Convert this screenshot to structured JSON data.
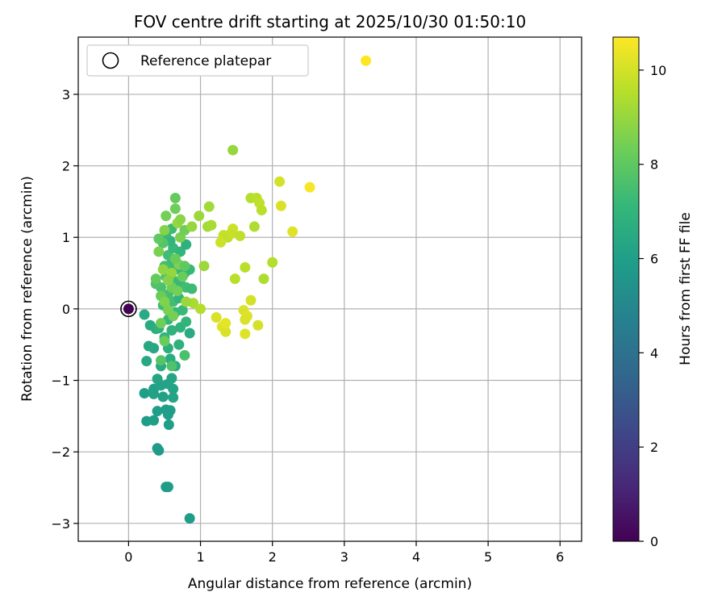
{
  "chart_data": {
    "type": "scatter",
    "title": "FOV centre drift starting at 2025/10/30 01:50:10",
    "xlabel": "Angular distance from reference (arcmin)",
    "ylabel": "Rotation from reference (arcmin)",
    "xlim": [
      -0.7,
      6.3
    ],
    "ylim": [
      -3.25,
      3.8
    ],
    "xticks": [
      0,
      1,
      2,
      3,
      4,
      5,
      6
    ],
    "yticks": [
      -3,
      -2,
      -1,
      0,
      1,
      2,
      3
    ],
    "xtick_labels": [
      "0",
      "1",
      "2",
      "3",
      "4",
      "5",
      "6"
    ],
    "ytick_labels": [
      "−3",
      "−2",
      "−1",
      "0",
      "1",
      "2",
      "3"
    ],
    "grid": true,
    "legend": {
      "position": "top-left",
      "label": "Reference platepar"
    },
    "reference_point": {
      "x": 0,
      "y": 0,
      "hours": 0
    },
    "colorbar": {
      "label": "Hours from first FF file",
      "range": [
        0,
        10.7
      ],
      "ticks": [
        0,
        2,
        4,
        6,
        8,
        10
      ],
      "tick_labels": [
        "0",
        "2",
        "4",
        "6",
        "8",
        "10"
      ],
      "colormap": "viridis",
      "colors": [
        "#440154",
        "#482878",
        "#3e4989",
        "#31688e",
        "#26828e",
        "#1f9e89",
        "#35b779",
        "#6ece58",
        "#b5de2b",
        "#fde725"
      ]
    },
    "points": [
      [
        0.52,
        -2.49,
        5.9
      ],
      [
        0.55,
        -2.49,
        5.9
      ],
      [
        0.85,
        -2.93,
        5.9
      ],
      [
        0.4,
        -1.95,
        5.8
      ],
      [
        0.42,
        -1.98,
        5.8
      ],
      [
        0.25,
        -1.57,
        5.9
      ],
      [
        0.35,
        -1.56,
        6.0
      ],
      [
        0.22,
        -1.18,
        6.0
      ],
      [
        0.35,
        -1.12,
        6.1
      ],
      [
        0.35,
        -1.19,
        6.1
      ],
      [
        0.4,
        -1.43,
        6.0
      ],
      [
        0.52,
        -1.41,
        6.0
      ],
      [
        0.55,
        -1.48,
        6.0
      ],
      [
        0.58,
        -1.42,
        6.0
      ],
      [
        0.56,
        -1.62,
        6.0
      ],
      [
        0.48,
        -1.23,
        6.1
      ],
      [
        0.62,
        -1.24,
        6.2
      ],
      [
        0.62,
        -1.12,
        6.2
      ],
      [
        0.55,
        -1.05,
        6.2
      ],
      [
        0.45,
        -1.07,
        6.2
      ],
      [
        0.4,
        -0.98,
        6.3
      ],
      [
        0.6,
        -0.97,
        6.3
      ],
      [
        0.28,
        -0.52,
        6.4
      ],
      [
        0.35,
        -0.55,
        6.4
      ],
      [
        0.25,
        -0.73,
        6.4
      ],
      [
        0.45,
        -0.8,
        6.5
      ],
      [
        0.58,
        -0.7,
        6.6
      ],
      [
        0.65,
        -0.8,
        6.6
      ],
      [
        0.22,
        -0.08,
        6.5
      ],
      [
        0.3,
        -0.23,
        6.5
      ],
      [
        0.38,
        -0.28,
        6.6
      ],
      [
        0.85,
        -0.34,
        6.5
      ],
      [
        0.55,
        -0.55,
        6.7
      ],
      [
        0.7,
        -0.5,
        6.8
      ],
      [
        0.78,
        -0.65,
        7.6
      ],
      [
        0.6,
        -0.8,
        7.7
      ],
      [
        0.45,
        -0.72,
        7.8
      ],
      [
        0.42,
        -0.27,
        6.8
      ],
      [
        0.5,
        -0.4,
        7.0
      ],
      [
        0.6,
        -0.3,
        6.9
      ],
      [
        0.72,
        -0.26,
        6.9
      ],
      [
        0.8,
        -0.18,
        7.0
      ],
      [
        0.55,
        -0.15,
        7.1
      ],
      [
        0.65,
        -0.05,
        7.2
      ],
      [
        0.75,
        -0.02,
        7.2
      ],
      [
        0.48,
        0.05,
        7.3
      ],
      [
        0.62,
        0.1,
        7.4
      ],
      [
        0.7,
        0.15,
        7.0
      ],
      [
        0.55,
        0.2,
        7.5
      ],
      [
        0.45,
        0.3,
        7.6
      ],
      [
        0.38,
        0.35,
        7.7
      ],
      [
        0.52,
        0.45,
        7.7
      ],
      [
        0.62,
        0.4,
        7.3
      ],
      [
        0.72,
        0.35,
        7.2
      ],
      [
        0.8,
        0.3,
        7.4
      ],
      [
        0.88,
        0.28,
        7.3
      ],
      [
        0.85,
        0.55,
        7.2
      ],
      [
        0.78,
        0.5,
        7.0
      ],
      [
        0.65,
        0.55,
        7.1
      ],
      [
        0.58,
        0.62,
        7.3
      ],
      [
        0.5,
        0.6,
        7.5
      ],
      [
        0.55,
        0.75,
        7.4
      ],
      [
        0.62,
        0.85,
        7.2
      ],
      [
        0.72,
        0.8,
        7.0
      ],
      [
        0.8,
        0.9,
        6.8
      ],
      [
        0.58,
        0.95,
        7.0
      ],
      [
        0.52,
        1.05,
        7.2
      ],
      [
        0.6,
        1.12,
        7.3
      ],
      [
        0.48,
        0.92,
        7.8
      ],
      [
        0.42,
        0.98,
        8.0
      ],
      [
        0.38,
        0.42,
        8.1
      ],
      [
        0.45,
        0.18,
        8.2
      ],
      [
        0.5,
        0.1,
        8.6
      ],
      [
        0.55,
        -0.02,
        8.5
      ],
      [
        0.62,
        -0.1,
        8.4
      ],
      [
        0.45,
        -0.2,
        8.3
      ],
      [
        0.5,
        -0.45,
        8.2
      ],
      [
        0.6,
        0.3,
        8.3
      ],
      [
        0.68,
        0.25,
        8.4
      ],
      [
        0.75,
        0.45,
        8.2
      ],
      [
        0.7,
        0.62,
        8.6
      ],
      [
        0.78,
        0.6,
        8.0
      ],
      [
        0.65,
        0.7,
        8.2
      ],
      [
        0.72,
        1.0,
        8.5
      ],
      [
        0.78,
        1.1,
        8.3
      ],
      [
        0.68,
        1.2,
        9.0
      ],
      [
        0.72,
        1.25,
        8.8
      ],
      [
        0.65,
        1.4,
        8.3
      ],
      [
        0.65,
        1.55,
        8.1
      ],
      [
        0.52,
        1.3,
        8.4
      ],
      [
        0.5,
        1.1,
        8.7
      ],
      [
        0.42,
        0.8,
        8.5
      ],
      [
        0.48,
        0.55,
        8.9
      ],
      [
        0.6,
        0.5,
        9.0
      ],
      [
        0.55,
        0.4,
        8.7
      ],
      [
        0.88,
        1.15,
        9.0
      ],
      [
        0.98,
        1.3,
        9.1
      ],
      [
        1.1,
        1.15,
        9.2
      ],
      [
        1.15,
        1.17,
        9.3
      ],
      [
        1.12,
        1.43,
        9.2
      ],
      [
        1.05,
        0.6,
        9.1
      ],
      [
        0.9,
        0.08,
        9.3
      ],
      [
        1.0,
        0.0,
        9.5
      ],
      [
        0.8,
        0.1,
        9.1
      ],
      [
        1.45,
        2.22,
        9.0
      ],
      [
        1.32,
        1.03,
        9.8
      ],
      [
        1.38,
        1.0,
        9.7
      ],
      [
        1.28,
        0.93,
        9.9
      ],
      [
        1.45,
        1.12,
        9.9
      ],
      [
        1.42,
        1.05,
        9.8
      ],
      [
        1.55,
        1.02,
        9.7
      ],
      [
        1.62,
        0.58,
        9.6
      ],
      [
        1.48,
        0.42,
        9.6
      ],
      [
        1.7,
        1.55,
        9.5
      ],
      [
        1.78,
        1.55,
        9.6
      ],
      [
        1.82,
        1.48,
        9.7
      ],
      [
        1.85,
        1.38,
        9.6
      ],
      [
        1.75,
        1.15,
        9.4
      ],
      [
        2.0,
        0.65,
        9.5
      ],
      [
        1.88,
        0.42,
        9.4
      ],
      [
        1.7,
        0.12,
        10.0
      ],
      [
        1.6,
        -0.02,
        10.1
      ],
      [
        1.65,
        -0.1,
        10.2
      ],
      [
        1.62,
        -0.15,
        10.1
      ],
      [
        1.62,
        -0.35,
        10.2
      ],
      [
        1.8,
        -0.23,
        10.0
      ],
      [
        1.22,
        -0.12,
        10.1
      ],
      [
        1.3,
        -0.25,
        10.2
      ],
      [
        1.35,
        -0.32,
        10.1
      ],
      [
        1.35,
        -0.2,
        10.3
      ],
      [
        2.1,
        1.78,
        10.0
      ],
      [
        2.12,
        1.44,
        10.1
      ],
      [
        2.28,
        1.08,
        10.2
      ],
      [
        2.52,
        1.7,
        10.6
      ],
      [
        3.3,
        3.47,
        10.7
      ]
    ]
  }
}
